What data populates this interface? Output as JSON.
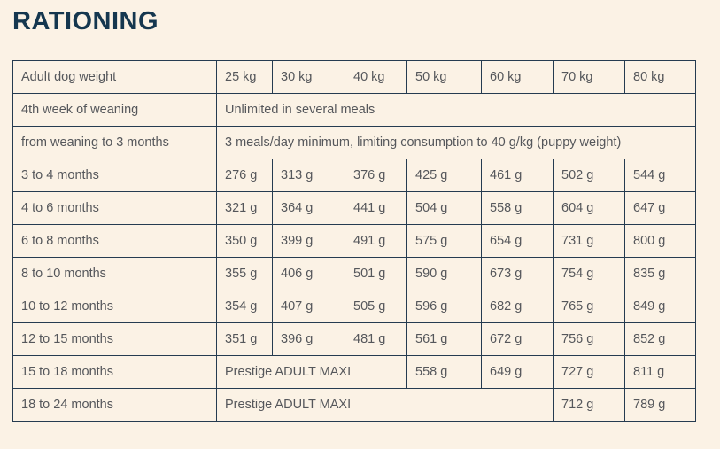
{
  "page": {
    "title": "RATIONING"
  },
  "colors": {
    "background": "#fbf2e5",
    "title_text": "#15374f",
    "table_border": "#253b50",
    "cell_text": "#55575b"
  },
  "chart_data": {
    "type": "table",
    "title": "RATIONING",
    "columns": [
      "Adult dog weight",
      "25 kg",
      "30 kg",
      "40 kg",
      "50 kg",
      "60 kg",
      "70 kg",
      "80 kg"
    ],
    "rows": [
      {
        "label": "4th week of weaning",
        "cells": [
          {
            "text": "Unlimited in several meals",
            "colspan": 7
          }
        ]
      },
      {
        "label": "from weaning to 3 months",
        "cells": [
          {
            "text": "3 meals/day minimum, limiting consumption to 40 g/kg (puppy weight)",
            "colspan": 7
          }
        ]
      },
      {
        "label": "3 to 4 months",
        "cells": [
          {
            "text": "276 g"
          },
          {
            "text": "313 g"
          },
          {
            "text": "376 g"
          },
          {
            "text": "425 g"
          },
          {
            "text": "461 g"
          },
          {
            "text": "502 g"
          },
          {
            "text": "544 g"
          }
        ]
      },
      {
        "label": "4 to 6 months",
        "cells": [
          {
            "text": "321 g"
          },
          {
            "text": "364 g"
          },
          {
            "text": "441 g"
          },
          {
            "text": "504 g"
          },
          {
            "text": "558 g"
          },
          {
            "text": "604 g"
          },
          {
            "text": "647 g"
          }
        ]
      },
      {
        "label": "6 to 8 months",
        "cells": [
          {
            "text": "350 g"
          },
          {
            "text": "399 g"
          },
          {
            "text": "491 g"
          },
          {
            "text": "575 g"
          },
          {
            "text": "654 g"
          },
          {
            "text": "731 g"
          },
          {
            "text": "800 g"
          }
        ]
      },
      {
        "label": "8 to 10 months",
        "cells": [
          {
            "text": "355 g"
          },
          {
            "text": "406 g"
          },
          {
            "text": "501 g"
          },
          {
            "text": "590 g"
          },
          {
            "text": "673 g"
          },
          {
            "text": "754 g"
          },
          {
            "text": "835 g"
          }
        ]
      },
      {
        "label": "10 to 12 months",
        "cells": [
          {
            "text": "354 g"
          },
          {
            "text": "407 g"
          },
          {
            "text": "505 g"
          },
          {
            "text": "596 g"
          },
          {
            "text": "682 g"
          },
          {
            "text": "765 g"
          },
          {
            "text": "849 g"
          }
        ]
      },
      {
        "label": "12 to 15 months",
        "cells": [
          {
            "text": "351 g"
          },
          {
            "text": "396 g"
          },
          {
            "text": "481 g"
          },
          {
            "text": "561 g"
          },
          {
            "text": "672 g"
          },
          {
            "text": "756 g"
          },
          {
            "text": "852 g"
          }
        ]
      },
      {
        "label": "15 to 18 months",
        "cells": [
          {
            "text": "Prestige ADULT MAXI",
            "colspan": 3
          },
          {
            "text": "558 g"
          },
          {
            "text": "649 g"
          },
          {
            "text": "727 g"
          },
          {
            "text": "811 g"
          }
        ]
      },
      {
        "label": "18 to 24 months",
        "cells": [
          {
            "text": "Prestige ADULT MAXI",
            "colspan": 5
          },
          {
            "text": "712 g"
          },
          {
            "text": "789 g"
          }
        ]
      }
    ]
  }
}
